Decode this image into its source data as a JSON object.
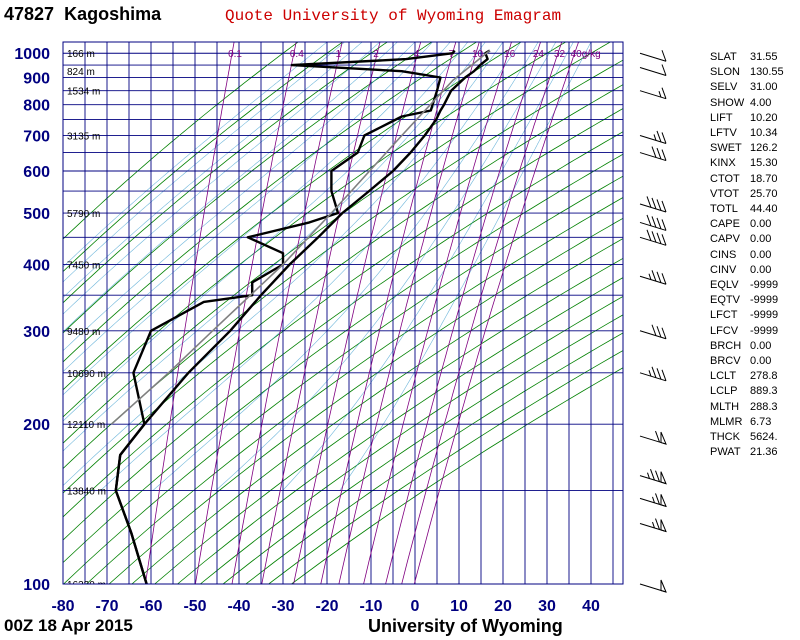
{
  "header": {
    "station_id": "47827",
    "station_name": "Kagoshima",
    "title": "Quote University of Wyoming Emagram"
  },
  "footer": {
    "datetime": "00Z 18 Apr 2015",
    "source": "University of Wyoming"
  },
  "colors": {
    "grid": "#000080",
    "dry_adiabat": "#008000",
    "mixing_ratio": "#800080",
    "sounding": "#000000",
    "parcel": "#808080",
    "title": "#cc0000",
    "axis_labels": "#000080"
  },
  "indices": [
    {
      "key": "SLAT",
      "value": "31.55"
    },
    {
      "key": "SLON",
      "value": "130.55"
    },
    {
      "key": "SELV",
      "value": "31.00"
    },
    {
      "key": "SHOW",
      "value": "4.00"
    },
    {
      "key": "LIFT",
      "value": "10.20"
    },
    {
      "key": "LFTV",
      "value": "10.34"
    },
    {
      "key": "SWET",
      "value": "126.2"
    },
    {
      "key": "KINX",
      "value": "15.30"
    },
    {
      "key": "CTOT",
      "value": "18.70"
    },
    {
      "key": "VTOT",
      "value": "25.70"
    },
    {
      "key": "TOTL",
      "value": "44.40"
    },
    {
      "key": "CAPE",
      "value": "0.00"
    },
    {
      "key": "CAPV",
      "value": "0.00"
    },
    {
      "key": "CINS",
      "value": "0.00"
    },
    {
      "key": "CINV",
      "value": "0.00"
    },
    {
      "key": "EQLV",
      "value": "-9999"
    },
    {
      "key": "EQTV",
      "value": "-9999"
    },
    {
      "key": "LFCT",
      "value": "-9999"
    },
    {
      "key": "LFCV",
      "value": "-9999"
    },
    {
      "key": "BRCH",
      "value": "0.00"
    },
    {
      "key": "BRCV",
      "value": "0.00"
    },
    {
      "key": "LCLT",
      "value": "278.8"
    },
    {
      "key": "LCLP",
      "value": "889.3"
    },
    {
      "key": "MLTH",
      "value": "288.3"
    },
    {
      "key": "MLMR",
      "value": "6.73"
    },
    {
      "key": "THCK",
      "value": "5624."
    },
    {
      "key": "PWAT",
      "value": "21.36"
    }
  ],
  "chart_data": {
    "type": "line",
    "x_ticks": [
      -80,
      -70,
      -60,
      -50,
      -40,
      -30,
      -20,
      -10,
      0,
      10,
      20,
      30,
      40
    ],
    "y_ticks": [
      1000,
      900,
      800,
      700,
      600,
      500,
      400,
      300,
      200,
      100
    ],
    "xlim": [
      -80,
      45
    ],
    "ylim": [
      1050,
      100
    ],
    "y_scale": "log",
    "grid": true,
    "height_labels": [
      {
        "p": 100,
        "label": "16330 m"
      },
      {
        "p": 150,
        "label": "13840 m"
      },
      {
        "p": 200,
        "label": "12110 m"
      },
      {
        "p": 250,
        "label": "10690 m"
      },
      {
        "p": 300,
        "label": "9480 m"
      },
      {
        "p": 400,
        "label": "7450 m"
      },
      {
        "p": 500,
        "label": "5790 m"
      },
      {
        "p": 700,
        "label": "3135 m"
      },
      {
        "p": 850,
        "label": "1534 m"
      },
      {
        "p": 925,
        "label": "824 m"
      },
      {
        "p": 1000,
        "label": "166 m"
      }
    ],
    "mixing_ratio_labels": [
      "0.1",
      "0.4",
      "1",
      "2",
      "4",
      "7",
      "10",
      "16",
      "24",
      "32",
      "40g/kg"
    ],
    "mixing_ratio_values": [
      0.1,
      0.4,
      1,
      2,
      4,
      7,
      10,
      16,
      24,
      32,
      40
    ],
    "series": [
      {
        "role": "temperature",
        "points": [
          [
            1012,
            17
          ],
          [
            1000,
            16
          ],
          [
            975,
            16.5
          ],
          [
            950,
            14.8
          ],
          [
            925,
            13.4
          ],
          [
            900,
            11.4
          ],
          [
            850,
            8.2
          ],
          [
            800,
            6.6
          ],
          [
            780,
            5.8
          ],
          [
            750,
            4.8
          ],
          [
            700,
            2.2
          ],
          [
            650,
            -1
          ],
          [
            600,
            -5
          ],
          [
            550,
            -10.4
          ],
          [
            500,
            -16.5
          ],
          [
            450,
            -22
          ],
          [
            400,
            -28.5
          ],
          [
            350,
            -35
          ],
          [
            300,
            -42
          ],
          [
            250,
            -51.5
          ],
          [
            200,
            -61.5
          ],
          [
            175,
            -67
          ],
          [
            150,
            -68
          ],
          [
            125,
            -64.5
          ],
          [
            100,
            -61
          ]
        ]
      },
      {
        "role": "dewpoint",
        "points": [
          [
            1012,
            9
          ],
          [
            1000,
            8.6
          ],
          [
            975,
            -2
          ],
          [
            950,
            -28
          ],
          [
            925,
            -3
          ],
          [
            900,
            5.8
          ],
          [
            850,
            5
          ],
          [
            800,
            4
          ],
          [
            780,
            3.6
          ],
          [
            760,
            -3
          ],
          [
            700,
            -11.5
          ],
          [
            650,
            -13
          ],
          [
            600,
            -19
          ],
          [
            550,
            -19
          ],
          [
            500,
            -17.5
          ],
          [
            480,
            -24
          ],
          [
            450,
            -38
          ],
          [
            420,
            -30
          ],
          [
            400,
            -30
          ],
          [
            370,
            -37
          ],
          [
            350,
            -37
          ],
          [
            340,
            -48
          ],
          [
            300,
            -60
          ],
          [
            250,
            -64
          ],
          [
            200,
            -61.5
          ],
          [
            175,
            -67
          ],
          [
            150,
            -68
          ],
          [
            125,
            -64.5
          ],
          [
            100,
            -61
          ]
        ]
      },
      {
        "role": "parcel",
        "points": [
          [
            1012,
            17
          ],
          [
            889,
            8.6
          ],
          [
            700,
            -3
          ],
          [
            500,
            -19
          ],
          [
            400,
            -30
          ],
          [
            300,
            -46
          ],
          [
            250,
            -56
          ],
          [
            200,
            -69
          ]
        ]
      }
    ],
    "wind_barbs": [
      {
        "p": 100,
        "speed_kt": 50
      },
      {
        "p": 130,
        "speed_kt": 65
      },
      {
        "p": 145,
        "speed_kt": 65
      },
      {
        "p": 160,
        "speed_kt": 75
      },
      {
        "p": 190,
        "speed_kt": 60
      },
      {
        "p": 250,
        "speed_kt": 35
      },
      {
        "p": 300,
        "speed_kt": 30
      },
      {
        "p": 380,
        "speed_kt": 35
      },
      {
        "p": 450,
        "speed_kt": 40
      },
      {
        "p": 480,
        "speed_kt": 40
      },
      {
        "p": 520,
        "speed_kt": 40
      },
      {
        "p": 650,
        "speed_kt": 30
      },
      {
        "p": 700,
        "speed_kt": 25
      },
      {
        "p": 850,
        "speed_kt": 15
      },
      {
        "p": 940,
        "speed_kt": 10
      },
      {
        "p": 1000,
        "speed_kt": 10
      }
    ]
  }
}
